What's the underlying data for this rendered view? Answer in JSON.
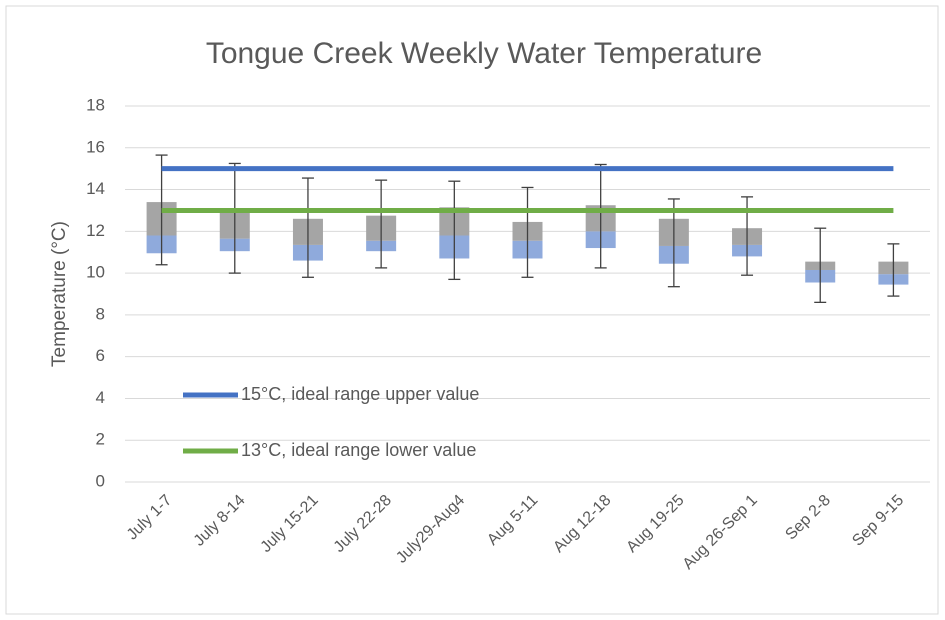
{
  "chart_data": {
    "type": "box",
    "title": "Tongue Creek Weekly Water Temperature",
    "y_label": "Temperature (°C)",
    "categories": [
      "July 1-7",
      "July 8-14",
      "July 15-21",
      "July 22-28",
      "July29-Aug4",
      "Aug 5-11",
      "Aug 12-18",
      "Aug 19-25",
      "Aug 26-Sep 1",
      "Sep 2-8",
      "Sep 9-15"
    ],
    "boxes": [
      {
        "min": 10.4,
        "q1": 10.95,
        "median": 11.8,
        "q3": 13.4,
        "max": 15.65
      },
      {
        "min": 10.0,
        "q1": 11.05,
        "median": 11.65,
        "q3": 13.0,
        "max": 15.25
      },
      {
        "min": 9.8,
        "q1": 10.6,
        "median": 11.35,
        "q3": 12.6,
        "max": 14.55
      },
      {
        "min": 10.25,
        "q1": 11.05,
        "median": 11.55,
        "q3": 12.75,
        "max": 14.45
      },
      {
        "min": 9.7,
        "q1": 10.7,
        "median": 11.8,
        "q3": 13.15,
        "max": 14.4
      },
      {
        "min": 9.8,
        "q1": 10.7,
        "median": 11.55,
        "q3": 12.45,
        "max": 14.1
      },
      {
        "min": 10.25,
        "q1": 11.2,
        "median": 12.0,
        "q3": 13.25,
        "max": 15.2
      },
      {
        "min": 9.35,
        "q1": 10.45,
        "median": 11.3,
        "q3": 12.6,
        "max": 13.55
      },
      {
        "min": 9.9,
        "q1": 10.8,
        "median": 11.35,
        "q3": 12.15,
        "max": 13.65
      },
      {
        "min": 8.6,
        "q1": 9.55,
        "median": 10.15,
        "q3": 10.55,
        "max": 12.15
      },
      {
        "min": 8.9,
        "q1": 9.45,
        "median": 9.95,
        "q3": 10.55,
        "max": 11.4
      }
    ],
    "lower_box_color": "#8faadc",
    "upper_box_color": "#a5a5a5",
    "whisker_color": "#404040",
    "reference_lines": [
      {
        "name": "15°C, ideal range upper value",
        "value": 15,
        "color": "#4472c4"
      },
      {
        "name": "13°C, ideal range lower value",
        "value": 13,
        "color": "#70ad47"
      }
    ],
    "legend": "lower left",
    "ylim": [
      0,
      18
    ],
    "yticks": [
      0,
      2,
      4,
      6,
      8,
      10,
      12,
      14,
      16,
      18
    ],
    "grid": true
  }
}
